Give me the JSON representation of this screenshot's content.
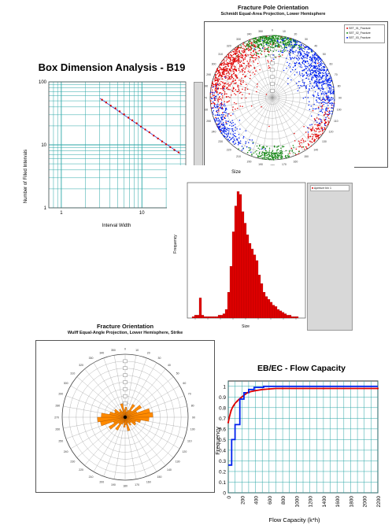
{
  "colors": {
    "teal_grid": "#2aa6a6",
    "red": "#e00000",
    "green": "#1a8a1a",
    "blue": "#0022ee",
    "orange": "#ff8a00",
    "legend_bg": "#d8d8d8"
  },
  "chart_data": [
    {
      "id": "box_dimension",
      "type": "scatter",
      "title": "Box Dimension Analysis - B19",
      "xlabel": "Interval Width",
      "ylabel": "Number of Filled Intervals",
      "x_scale": "log",
      "y_scale": "log",
      "ytick_labels": [
        "100",
        "10",
        "1"
      ],
      "xtick_labels": [
        "1",
        "10"
      ],
      "ylim": [
        1,
        100
      ],
      "x": [
        3.2,
        3.6,
        4.1,
        4.7,
        5.3,
        6.0,
        6.8,
        7.6,
        8.6,
        9.7,
        11.0,
        12.4,
        14.0,
        15.8,
        17.8,
        20.0,
        22.5,
        25.3,
        28.5
      ],
      "y": [
        52.0,
        47.0,
        42.0,
        38.0,
        34.0,
        30.5,
        27.0,
        24.5,
        22.0,
        19.5,
        17.5,
        15.8,
        14.0,
        12.6,
        11.3,
        10.2,
        9.2,
        8.3,
        7.6
      ],
      "fit_line": {
        "x": [
          3.0,
          30.0
        ],
        "y": [
          55.0,
          7.2
        ]
      }
    },
    {
      "id": "fracture_pole",
      "type": "scatter",
      "title": "Fracture Pole Orientation",
      "subtitle": "Schmidt Equal-Area Projection, Lower Hemisphere",
      "series": [
        {
          "name": "SET_01_Fracture",
          "color": "#e00000"
        },
        {
          "name": "SET_02_Fracture",
          "color": "#1a8a1a"
        },
        {
          "name": "SET_03_Fracture",
          "color": "#0022ee"
        }
      ],
      "clusters": [
        {
          "series": "SET_01_Fracture",
          "trend_deg": 305,
          "spread": 0.22,
          "count": 700
        },
        {
          "series": "SET_01_Fracture",
          "trend_deg": 125,
          "spread": 0.12,
          "count": 160
        },
        {
          "series": "SET_02_Fracture",
          "trend_deg": 0,
          "spread": 0.11,
          "count": 420
        },
        {
          "series": "SET_02_Fracture",
          "trend_deg": 180,
          "spread": 0.1,
          "count": 200
        },
        {
          "series": "SET_03_Fracture",
          "trend_deg": 60,
          "spread": 0.2,
          "count": 700
        },
        {
          "series": "SET_03_Fracture",
          "trend_deg": 240,
          "spread": 0.14,
          "count": 240
        }
      ]
    },
    {
      "id": "size_histogram",
      "type": "bar",
      "title": "Size",
      "xlabel": "Size",
      "ylabel": "Frequency",
      "legend": "Aperture bin 1",
      "color": "#e00000",
      "values": [
        0,
        1,
        2,
        2,
        14,
        2,
        1,
        1,
        1,
        1,
        1,
        1,
        2,
        2,
        3,
        6,
        18,
        36,
        60,
        78,
        88,
        86,
        74,
        66,
        58,
        52,
        48,
        44,
        40,
        30,
        24,
        18,
        15,
        13,
        11,
        9,
        8,
        6,
        5,
        4,
        3,
        2,
        2,
        1,
        1,
        1,
        0,
        0
      ],
      "ylim": [
        0,
        92
      ]
    },
    {
      "id": "fracture_orientation_rose",
      "type": "bar",
      "title": "Fracture Orientation",
      "subtitle": "Wulff Equal-Angle Projection, Lower Hemisphere, Strike",
      "color": "#ff8a00",
      "petals": [
        {
          "azimuth": 5,
          "length": 0.16
        },
        {
          "azimuth": 15,
          "length": 0.09
        },
        {
          "azimuth": 25,
          "length": 0.12
        },
        {
          "azimuth": 35,
          "length": 0.24
        },
        {
          "azimuth": 45,
          "length": 0.14
        },
        {
          "azimuth": 55,
          "length": 0.3
        },
        {
          "azimuth": 65,
          "length": 0.2
        },
        {
          "azimuth": 75,
          "length": 0.4
        },
        {
          "azimuth": 85,
          "length": 0.44
        },
        {
          "azimuth": 95,
          "length": 0.38
        },
        {
          "azimuth": 105,
          "length": 0.25
        },
        {
          "azimuth": 115,
          "length": 0.18
        },
        {
          "azimuth": 125,
          "length": 0.2
        },
        {
          "azimuth": 135,
          "length": 0.12
        },
        {
          "azimuth": 145,
          "length": 0.15
        },
        {
          "azimuth": 155,
          "length": 0.1
        },
        {
          "azimuth": 165,
          "length": 0.22
        },
        {
          "azimuth": 175,
          "length": 0.12
        }
      ]
    },
    {
      "id": "flow_capacity",
      "type": "line",
      "title": "EB/EC - Flow Capacity",
      "xlabel": "Flow Capacity (k*h)",
      "ylabel": "Frequency",
      "xlim": [
        0,
        2200
      ],
      "ylim": [
        0,
        1.05
      ],
      "xtick_labels": [
        "0",
        "200",
        "400",
        "600",
        "800",
        "1000",
        "1200",
        "1400",
        "1600",
        "1800",
        "2000",
        "2200"
      ],
      "ytick_labels": [
        "0",
        "0.1",
        "0.2",
        "0.3",
        "0.4",
        "0.5",
        "0.6",
        "0.7",
        "0.8",
        "0.9",
        "1"
      ],
      "series": [
        {
          "color": "#e00000",
          "x": [
            0,
            20,
            40,
            60,
            80,
            100,
            130,
            160,
            200,
            240,
            280,
            330,
            400,
            500,
            600,
            700,
            800,
            1000,
            1400,
            1800,
            2200
          ],
          "y": [
            0.66,
            0.72,
            0.77,
            0.8,
            0.82,
            0.84,
            0.86,
            0.88,
            0.9,
            0.92,
            0.94,
            0.95,
            0.96,
            0.97,
            0.975,
            0.98,
            0.98,
            0.98,
            0.98,
            0.98,
            0.98
          ]
        },
        {
          "color": "#0022ee",
          "x": [
            0,
            50,
            50,
            100,
            100,
            170,
            170,
            230,
            230,
            300,
            300,
            380,
            380,
            520,
            520,
            700,
            700,
            2200
          ],
          "y": [
            0.26,
            0.26,
            0.5,
            0.5,
            0.64,
            0.64,
            0.88,
            0.88,
            0.94,
            0.94,
            0.97,
            0.97,
            0.99,
            0.99,
            1.0,
            1.0,
            1.0,
            1.0
          ]
        }
      ]
    }
  ]
}
